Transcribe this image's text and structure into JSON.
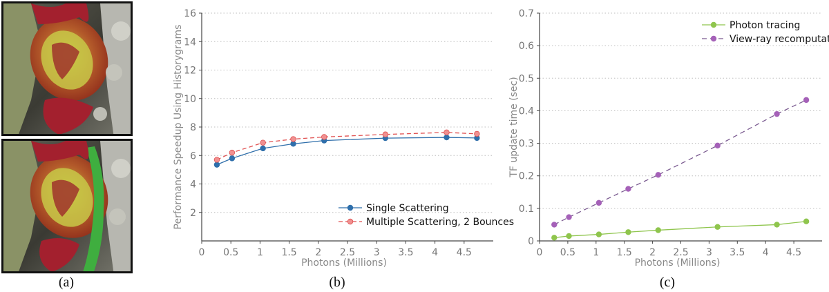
{
  "captions": [
    "(a)",
    "(b)",
    "(c)"
  ],
  "colors": {
    "single": "#2f6fab",
    "multiple_line": "#e05050",
    "multiple_fill": "#f09090",
    "photon": "#8fc54d",
    "viewray_line": "#7a5a90",
    "viewray_fill": "#a561b8",
    "grid": "#bdbdbd",
    "axis": "#444444"
  },
  "chart_data": [
    {
      "type": "line",
      "xlabel": "Photons (Millions)",
      "ylabel": "Performance Speedup Using Historygrams",
      "xlim": [
        0,
        5
      ],
      "ylim": [
        0,
        16
      ],
      "xticks": [
        "0",
        "0.5",
        "1",
        "1.5",
        "2",
        "2.5",
        "3",
        "3.5",
        "4",
        "4.5"
      ],
      "yticks": [
        "2",
        "4",
        "6",
        "8",
        "10",
        "12",
        "14",
        "16"
      ],
      "grid": "horizontal dotted",
      "legend_position": "bottom-right",
      "series": [
        {
          "name": "Single Scattering",
          "style": "solid",
          "x": [
            0.26,
            0.52,
            1.05,
            1.57,
            2.1,
            3.15,
            4.2,
            4.72
          ],
          "y": [
            5.35,
            5.8,
            6.5,
            6.82,
            7.05,
            7.22,
            7.27,
            7.23
          ]
        },
        {
          "name": "Multiple Scattering, 2 Bounces",
          "style": "dashed",
          "x": [
            0.26,
            0.52,
            1.05,
            1.57,
            2.1,
            3.15,
            4.2,
            4.72
          ],
          "y": [
            5.7,
            6.2,
            6.9,
            7.15,
            7.3,
            7.48,
            7.62,
            7.52
          ]
        }
      ]
    },
    {
      "type": "line",
      "xlabel": "Photons (Millions)",
      "ylabel": "TF update time (sec)",
      "xlim": [
        0,
        5
      ],
      "ylim": [
        0,
        0.7
      ],
      "xticks": [
        "0",
        "0.5",
        "1",
        "1.5",
        "2",
        "2.5",
        "3",
        "3.5",
        "4",
        "4.5"
      ],
      "yticks": [
        "0",
        "0.1",
        "0.2",
        "0.3",
        "0.4",
        "0.5",
        "0.6",
        "0.7"
      ],
      "grid": "horizontal dotted",
      "legend_position": "top-right",
      "series": [
        {
          "name": "Photon tracing",
          "style": "solid",
          "x": [
            0.26,
            0.52,
            1.05,
            1.57,
            2.1,
            3.15,
            4.2,
            4.72
          ],
          "y": [
            0.01,
            0.015,
            0.02,
            0.027,
            0.033,
            0.043,
            0.05,
            0.06
          ]
        },
        {
          "name": "View-ray recomputation",
          "style": "dashed",
          "x": [
            0.26,
            0.52,
            1.05,
            1.57,
            2.1,
            3.15,
            4.2,
            4.72
          ],
          "y": [
            0.05,
            0.073,
            0.117,
            0.16,
            0.203,
            0.293,
            0.39,
            0.433
          ]
        }
      ]
    }
  ]
}
